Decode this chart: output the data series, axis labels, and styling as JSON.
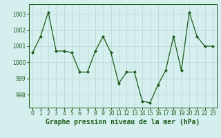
{
  "x": [
    0,
    1,
    2,
    3,
    4,
    5,
    6,
    7,
    8,
    9,
    10,
    11,
    12,
    13,
    14,
    15,
    16,
    17,
    18,
    19,
    20,
    21,
    22,
    23
  ],
  "y": [
    1000.6,
    1001.6,
    1003.1,
    1000.7,
    1000.7,
    1000.6,
    999.4,
    999.4,
    1000.7,
    1001.6,
    1000.6,
    998.7,
    999.4,
    999.4,
    997.6,
    997.5,
    998.6,
    999.5,
    1001.6,
    999.5,
    1003.1,
    1001.6,
    1001.0,
    1001.0
  ],
  "line_color": "#1a5c1a",
  "marker": "D",
  "marker_size": 2.0,
  "bg_color": "#d5eeee",
  "grid_color": "#b8d4d4",
  "title": "Graphe pression niveau de la mer (hPa)",
  "ylim_low": 997.2,
  "ylim_high": 1003.6,
  "yticks": [
    998,
    999,
    1000,
    1001,
    1002,
    1003
  ],
  "title_color": "#1a5c1a",
  "title_fontsize": 7.0,
  "tick_fontsize": 5.5,
  "tick_color": "#1a5c1a",
  "linewidth": 0.9
}
